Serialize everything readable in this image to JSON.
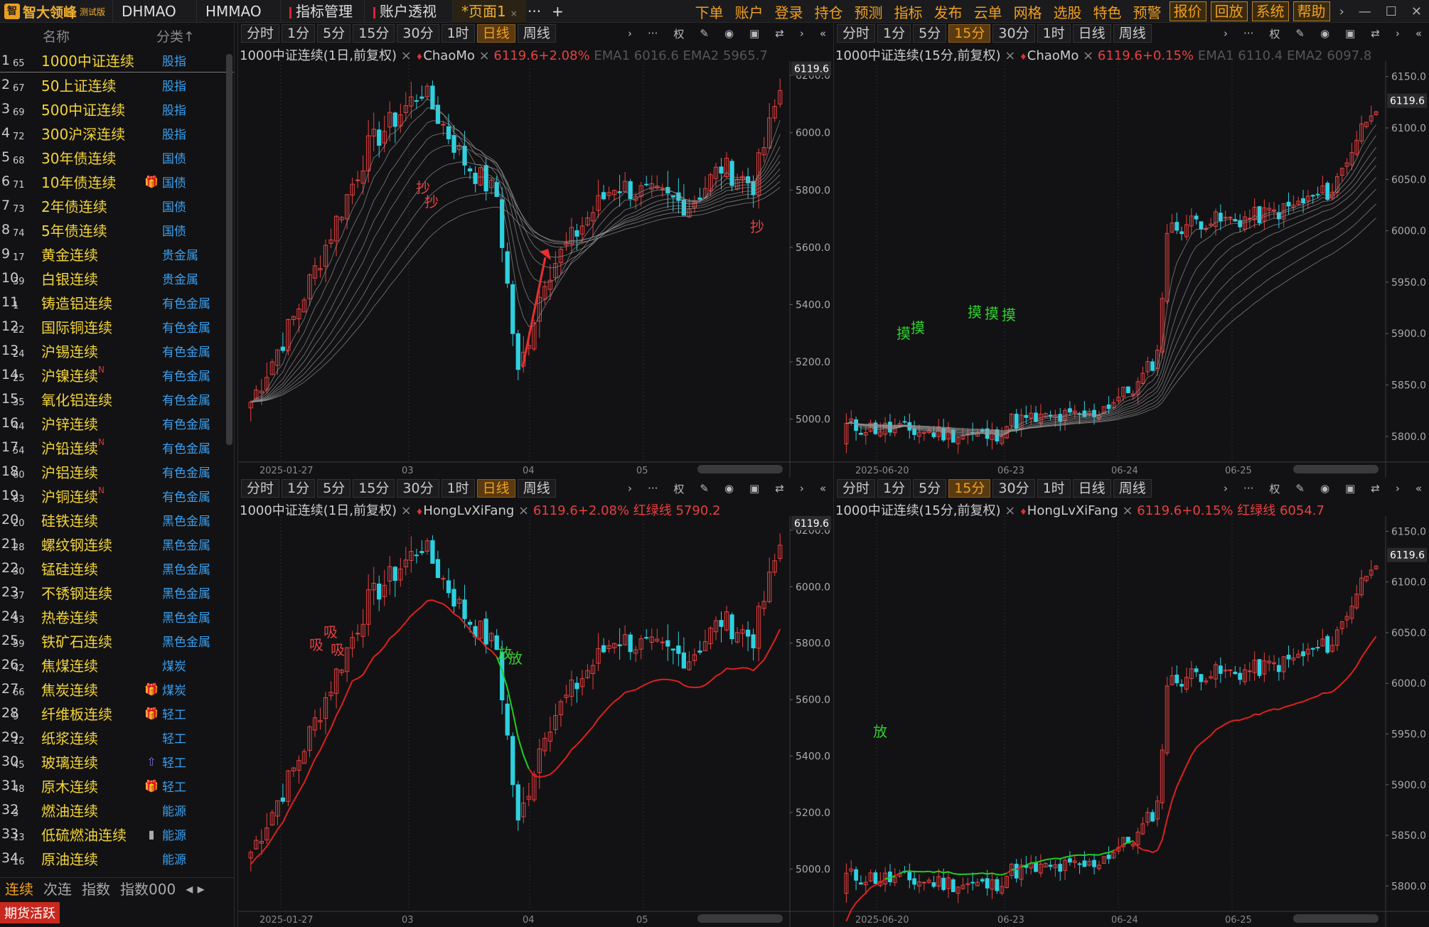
{
  "app": {
    "name": "智大领峰",
    "edition": "测试版"
  },
  "tabs": [
    {
      "label": "DHMAO"
    },
    {
      "label": "HMMAO"
    },
    {
      "label": "指标管理"
    },
    {
      "label": "账户透视"
    },
    {
      "label": "*页面1"
    }
  ],
  "tab_plus": "+",
  "tab_more": "···",
  "menu": [
    "下单",
    "账户",
    "登录",
    "持仓",
    "预测",
    "指标",
    "发布",
    "云单",
    "网格",
    "选股",
    "特色",
    "预警"
  ],
  "menu_boxed": [
    "报价",
    "回放",
    "系统",
    "帮助"
  ],
  "list": {
    "header": {
      "name": "名称",
      "category": "分类↑"
    },
    "rows": [
      {
        "n": "1",
        "code": "65",
        "name": "1000中证连续",
        "cat": "股指"
      },
      {
        "n": "2",
        "code": "67",
        "name": "50上证连续",
        "cat": "股指"
      },
      {
        "n": "3",
        "code": "69",
        "name": "500中证连续",
        "cat": "股指"
      },
      {
        "n": "4",
        "code": "72",
        "name": "300沪深连续",
        "cat": "股指"
      },
      {
        "n": "5",
        "code": "68",
        "name": "30年债连续",
        "cat": "国债"
      },
      {
        "n": "6",
        "code": "71",
        "name": "10年债连续",
        "cat": "国债",
        "icon": "gift-icon"
      },
      {
        "n": "7",
        "code": "73",
        "name": "2年债连续",
        "cat": "国债"
      },
      {
        "n": "8",
        "code": "74",
        "name": "5年债连续",
        "cat": "国债"
      },
      {
        "n": "9",
        "code": "17",
        "name": "黄金连续",
        "cat": "贵金属"
      },
      {
        "n": "10",
        "code": "39",
        "name": "白银连续",
        "cat": "贵金属"
      },
      {
        "n": "11",
        "code": "1",
        "name": "铸造铝连续",
        "cat": "有色金属"
      },
      {
        "n": "12",
        "code": "22",
        "name": "国际铜连续",
        "cat": "有色金属"
      },
      {
        "n": "13",
        "code": "24",
        "name": "沪锡连续",
        "cat": "有色金属"
      },
      {
        "n": "14",
        "code": "25",
        "name": "沪镍连续",
        "cat": "有色金属",
        "sup": "N"
      },
      {
        "n": "15",
        "code": "35",
        "name": "氧化铝连续",
        "cat": "有色金属"
      },
      {
        "n": "16",
        "code": "44",
        "name": "沪锌连续",
        "cat": "有色金属"
      },
      {
        "n": "17",
        "code": "54",
        "name": "沪铅连续",
        "cat": "有色金属",
        "sup": "N"
      },
      {
        "n": "18",
        "code": "60",
        "name": "沪铝连续",
        "cat": "有色金属"
      },
      {
        "n": "19",
        "code": "63",
        "name": "沪铜连续",
        "cat": "有色金属",
        "sup": "N"
      },
      {
        "n": "20",
        "code": "20",
        "name": "硅铁连续",
        "cat": "黑色金属"
      },
      {
        "n": "21",
        "code": "28",
        "name": "螺纹钢连续",
        "cat": "黑色金属"
      },
      {
        "n": "22",
        "code": "30",
        "name": "锰硅连续",
        "cat": "黑色金属"
      },
      {
        "n": "23",
        "code": "37",
        "name": "不锈钢连续",
        "cat": "黑色金属"
      },
      {
        "n": "24",
        "code": "53",
        "name": "热卷连续",
        "cat": "黑色金属"
      },
      {
        "n": "25",
        "code": "59",
        "name": "铁矿石连续",
        "cat": "黑色金属"
      },
      {
        "n": "26",
        "code": "42",
        "name": "焦煤连续",
        "cat": "煤炭"
      },
      {
        "n": "27",
        "code": "66",
        "name": "焦炭连续",
        "cat": "煤炭",
        "icon": "gift-icon"
      },
      {
        "n": "28",
        "code": "9",
        "name": "纤维板连续",
        "cat": "轻工",
        "icon": "gift-icon"
      },
      {
        "n": "29",
        "code": "12",
        "name": "纸浆连续",
        "cat": "轻工"
      },
      {
        "n": "30",
        "code": "45",
        "name": "玻璃连续",
        "cat": "轻工",
        "icon": "arrow-up-icon"
      },
      {
        "n": "31",
        "code": "48",
        "name": "原木连续",
        "cat": "轻工",
        "icon": "gift-icon"
      },
      {
        "n": "32",
        "code": "3",
        "name": "燃油连续",
        "cat": "能源"
      },
      {
        "n": "33",
        "code": "13",
        "name": "低硫燃油连续",
        "cat": "能源",
        "icon": "doc-icon"
      },
      {
        "n": "34",
        "code": "16",
        "name": "原油连续",
        "cat": "能源"
      }
    ]
  },
  "bottom_tabs": [
    "连续",
    "次连",
    "指数",
    "指数000"
  ],
  "bottom_tag": "期货活跃",
  "periods": [
    "分时",
    "1分",
    "5分",
    "15分",
    "30分",
    "1时",
    "日线",
    "周线"
  ],
  "panels": [
    {
      "title_sym": "1000中证连续(1日,前复权)",
      "ind": "ChaoMo",
      "price": "6119.6+2.08%",
      "extra": "EMA1 6016.6 EMA2 5965.7",
      "active": "日线",
      "yticks": [
        "6200.0",
        "6000.0",
        "5800.0",
        "5600.0",
        "5400.0",
        "5200.0",
        "5000.0"
      ],
      "cur": "6119.6",
      "xticks": [
        "2025-01-27",
        "03",
        "04",
        "05"
      ],
      "marks": [
        "抄",
        "抄",
        "抄"
      ]
    },
    {
      "title_sym": "1000中证连续(15分,前复权)",
      "ind": "ChaoMo",
      "price": "6119.6+0.15%",
      "extra": "EMA1 6110.4 EMA2 6097.8",
      "active": "15分",
      "yticks": [
        "6150.0",
        "6100.0",
        "6050.0",
        "6000.0",
        "5950.0",
        "5900.0",
        "5850.0",
        "5800.0"
      ],
      "cur": "6119.6",
      "xticks": [
        "2025-06-20",
        "06-23",
        "06-24",
        "06-25"
      ],
      "marks": [
        "摸",
        "摸",
        "摸",
        "摸",
        "摸"
      ]
    },
    {
      "title_sym": "1000中证连续(1日,前复权)",
      "ind": "HongLvXiFang",
      "price": "6119.6+2.08%",
      "extra": "红绿线 5790.2",
      "active": "日线",
      "yticks": [
        "6200.0",
        "6000.0",
        "5800.0",
        "5600.0",
        "5400.0",
        "5200.0",
        "5000.0"
      ],
      "cur": "6119.6",
      "xticks": [
        "2025-01-27",
        "03",
        "04",
        "05"
      ],
      "marks": [
        "吸",
        "吸",
        "吸",
        "放",
        "放"
      ]
    },
    {
      "title_sym": "1000中证连续(15分,前复权)",
      "ind": "HongLvXiFang",
      "price": "6119.6+0.15%",
      "extra": "红绿线 6054.7",
      "active": "15分",
      "yticks": [
        "6150.0",
        "6100.0",
        "6050.0",
        "6000.0",
        "5950.0",
        "5900.0",
        "5850.0",
        "5800.0"
      ],
      "cur": "6119.6",
      "xticks": [
        "2025-06-20",
        "06-23",
        "06-24",
        "06-25"
      ],
      "marks": [
        "放"
      ]
    }
  ],
  "colors": {
    "up": "#e84040",
    "down": "#2ed0e0",
    "line_red": "#e02020",
    "line_green": "#20d020",
    "accent": "#f0a020"
  }
}
